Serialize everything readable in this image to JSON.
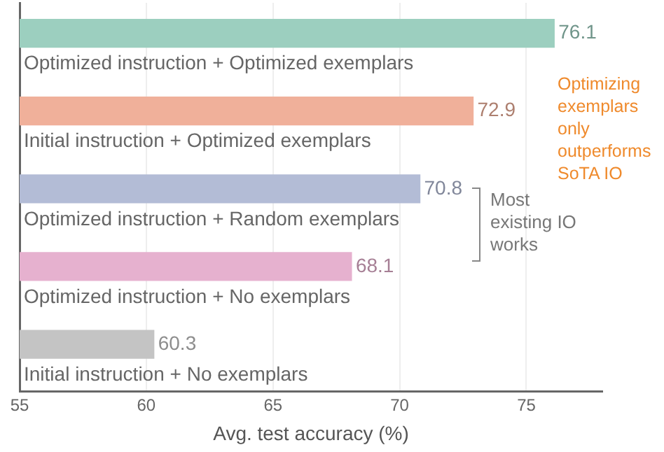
{
  "chart_data": {
    "type": "bar",
    "orientation": "horizontal",
    "xlabel": "Avg. test accuracy (%)",
    "categories": [
      "Optimized instruction + Optimized exemplars",
      "Initial instruction + Optimized exemplars",
      "Optimized instruction + Random exemplars",
      "Optimized instruction + No exemplars",
      "Initial instruction + No exemplars"
    ],
    "values": [
      76.1,
      72.9,
      70.8,
      68.1,
      60.3
    ],
    "colors": [
      "#9ccfbf",
      "#f0b09a",
      "#b3bcd6",
      "#e6b1cf",
      "#c4c4c4"
    ],
    "xlim": [
      55,
      78
    ],
    "xticks": [
      55,
      60,
      65,
      70,
      75
    ],
    "grid": "x",
    "data_labels": true,
    "legend": false,
    "annotations": [
      "Optimizing exemplars only outperforms SoTA IO",
      "Most existing IO works"
    ]
  }
}
